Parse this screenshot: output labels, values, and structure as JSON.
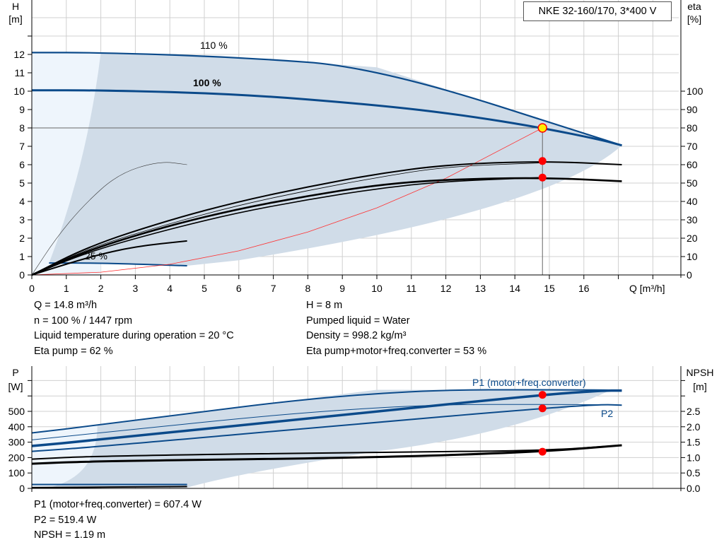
{
  "title": "NKE 32-160/170, 3*400 V",
  "colors": {
    "curve_blue": "#0b4a8a",
    "range_fill": "#d0dce8",
    "range_light": "#eef5fc",
    "duty_point": "#ff0000",
    "system_curve": "#ff3030"
  },
  "chart_data": [
    {
      "type": "line",
      "name_label": "head",
      "ylabel": "H",
      "yunit": "[m]",
      "y2label": "eta",
      "y2unit": "[%]",
      "xlabel": "Q [m³/h]",
      "xlim": [
        0,
        18
      ],
      "ylim": [
        0,
        12
      ],
      "y2lim": [
        0,
        120
      ],
      "grid": true,
      "xticks": [
        0,
        1,
        2,
        3,
        4,
        5,
        6,
        7,
        8,
        9,
        10,
        11,
        12,
        13,
        14,
        15,
        16
      ],
      "yticks": [
        0,
        1,
        2,
        3,
        4,
        5,
        6,
        7,
        8,
        9,
        10,
        11,
        12
      ],
      "y2ticks": [
        0,
        10,
        20,
        30,
        40,
        50,
        60,
        70,
        80,
        90,
        100
      ],
      "curve_labels": [
        "110 %",
        "100 %",
        "25 %"
      ],
      "series": [
        {
          "id": "h110",
          "color": "#0b4a8a",
          "width": 2.2,
          "points": [
            [
              0,
              12.1
            ],
            [
              2,
              12.1
            ],
            [
              6,
              11.85
            ],
            [
              10,
              11.3
            ],
            [
              17.1,
              7.05
            ]
          ]
        },
        {
          "id": "h100",
          "color": "#0b4a8a",
          "width": 3,
          "points": [
            [
              0,
              10.05
            ],
            [
              2,
              10.05
            ],
            [
              6,
              9.85
            ],
            [
              10,
              9.25
            ],
            [
              12.5,
              8.7
            ],
            [
              14.8,
              8.0
            ],
            [
              16.5,
              7.35
            ],
            [
              17.1,
              7.05
            ]
          ]
        },
        {
          "id": "h25",
          "color": "#0b4a8a",
          "width": 2,
          "points": [
            [
              0.5,
              0.65
            ],
            [
              2,
              0.65
            ],
            [
              4.5,
              0.5
            ]
          ]
        },
        {
          "id": "system",
          "color": "#ff3030",
          "width": 0.8,
          "points": [
            [
              0,
              0
            ],
            [
              2,
              0.15
            ],
            [
              4,
              0.58
            ],
            [
              6,
              1.31
            ],
            [
              8,
              2.34
            ],
            [
              10,
              3.65
            ],
            [
              12,
              5.26
            ],
            [
              14.8,
              8.0
            ]
          ]
        },
        {
          "id": "eta_pump",
          "axis": "y2",
          "color": "#000",
          "width": 2,
          "points": [
            [
              0,
              0
            ],
            [
              1.7,
              16
            ],
            [
              4,
              30
            ],
            [
              6,
              40
            ],
            [
              8,
              48
            ],
            [
              10,
              55
            ],
            [
              12,
              60
            ],
            [
              14.8,
              62
            ],
            [
              17.1,
              60
            ]
          ]
        },
        {
          "id": "eta_pump_thin",
          "axis": "y2",
          "color": "#000",
          "width": 0.8,
          "points": [
            [
              0,
              0
            ],
            [
              1.7,
              15
            ],
            [
              4,
              28
            ],
            [
              6,
              38
            ],
            [
              8,
              46
            ],
            [
              10,
              53
            ],
            [
              12,
              59
            ],
            [
              14.8,
              61
            ]
          ]
        },
        {
          "id": "eta_total",
          "axis": "y2",
          "color": "#000",
          "width": 2.6,
          "points": [
            [
              0,
              0
            ],
            [
              1.7,
              14
            ],
            [
              4,
              27
            ],
            [
              6,
              36
            ],
            [
              8,
              43
            ],
            [
              10,
              49
            ],
            [
              12,
              52
            ],
            [
              14.8,
              53
            ],
            [
              17.1,
              51
            ]
          ]
        },
        {
          "id": "eta_total2",
          "axis": "y2",
          "color": "#000",
          "width": 1.6,
          "points": [
            [
              0,
              0
            ],
            [
              1.7,
              13
            ],
            [
              4,
              25
            ],
            [
              6,
              34
            ],
            [
              8,
              41
            ],
            [
              10,
              47
            ],
            [
              12,
              51
            ],
            [
              14.8,
              53
            ]
          ]
        },
        {
          "id": "eta25",
          "axis": "y2",
          "color": "#000",
          "width": 2,
          "points": [
            [
              0,
              0
            ],
            [
              1.7,
              10
            ],
            [
              3,
              15.5
            ],
            [
              4.5,
              18.5
            ]
          ]
        },
        {
          "id": "eta_thin",
          "axis": "y2",
          "color": "#333",
          "width": 0.6,
          "points": [
            [
              0,
              0
            ],
            [
              0.7,
              20
            ],
            [
              1.5,
              38
            ],
            [
              2.5,
              55
            ],
            [
              3.7,
              62
            ],
            [
              4.5,
              60
            ]
          ]
        }
      ],
      "duty_points": [
        {
          "q": 14.8,
          "h": 8.0
        },
        {
          "q": 14.8,
          "eta": 62
        },
        {
          "q": 14.8,
          "eta": 53
        }
      ]
    },
    {
      "type": "line",
      "name_label": "power",
      "ylabel": "P",
      "yunit": "[W]",
      "y2label": "NPSH",
      "y2unit": "[m]",
      "xlim": [
        0,
        18
      ],
      "ylim": [
        0,
        780
      ],
      "y2lim": [
        0,
        3.9
      ],
      "grid": true,
      "yticks": [
        0,
        100,
        200,
        300,
        400,
        500
      ],
      "y2ticks": [
        "0.0",
        "0.5",
        "1.0",
        "1.5",
        "2.0",
        "2.5"
      ],
      "series_labels": [
        "P1 (motor+freq.converter)",
        "P2"
      ],
      "series": [
        {
          "id": "p1_110",
          "color": "#0b4a8a",
          "width": 2,
          "points": [
            [
              0,
              360
            ],
            [
              1.9,
              410
            ],
            [
              10,
              640
            ],
            [
              16.5,
              640
            ],
            [
              17.1,
              635
            ]
          ]
        },
        {
          "id": "p1_110thin",
          "color": "#0b4a8a",
          "width": 1,
          "points": [
            [
              0,
              315
            ],
            [
              10,
              545
            ],
            [
              16.5,
              545
            ],
            [
              17.1,
              540
            ]
          ]
        },
        {
          "id": "p1",
          "color": "#0b4a8a",
          "width": 3.5,
          "points": [
            [
              0,
              275
            ],
            [
              1.7,
              310
            ],
            [
              10,
              500
            ],
            [
              14.8,
              607
            ],
            [
              16.5,
              635
            ],
            [
              17.1,
              635
            ]
          ]
        },
        {
          "id": "p2",
          "color": "#0b4a8a",
          "width": 2,
          "points": [
            [
              0,
              240
            ],
            [
              1.9,
              270
            ],
            [
              10,
              430
            ],
            [
              14.8,
              519
            ],
            [
              16.5,
              545
            ],
            [
              17.1,
              540
            ]
          ]
        },
        {
          "id": "npsh_a",
          "axis": "y2",
          "color": "#000",
          "width": 2,
          "points": [
            [
              0,
              0.95
            ],
            [
              1.9,
              1.05
            ],
            [
              10,
              1.18
            ],
            [
              14.8,
              1.22
            ],
            [
              17.1,
              1.4
            ]
          ]
        },
        {
          "id": "npsh",
          "axis": "y2",
          "color": "#000",
          "width": 3,
          "points": [
            [
              0,
              0.8
            ],
            [
              1.7,
              0.88
            ],
            [
              10,
              1.0
            ],
            [
              14.8,
              1.19
            ],
            [
              17.1,
              1.4
            ]
          ]
        },
        {
          "id": "p25a",
          "color": "#0b4a8a",
          "width": 2,
          "points": [
            [
              0,
              25
            ],
            [
              4.5,
              25
            ]
          ]
        },
        {
          "id": "p25b",
          "color": "#000",
          "width": 2,
          "points": [
            [
              0,
              5
            ],
            [
              4.5,
              12
            ]
          ]
        }
      ],
      "duty_points": [
        {
          "q": 14.8,
          "p": 607.4
        },
        {
          "q": 14.8,
          "p": 519.4
        },
        {
          "q": 14.8,
          "npsh": 1.19
        }
      ]
    }
  ],
  "info_top_left": [
    "Q = 14.8 m³/h",
    "n = 100 % / 1447 rpm",
    "Liquid temperature during operation = 20 °C",
    "Eta pump = 62 %"
  ],
  "info_top_right": [
    "H = 8 m",
    "Pumped liquid = Water",
    "Density = 998.2 kg/m³",
    "Eta pump+motor+freq.converter = 53 %"
  ],
  "info_bottom": [
    "P1 (motor+freq.converter) = 607.4 W",
    "P2 = 519.4 W",
    "NPSH = 1.19 m"
  ]
}
